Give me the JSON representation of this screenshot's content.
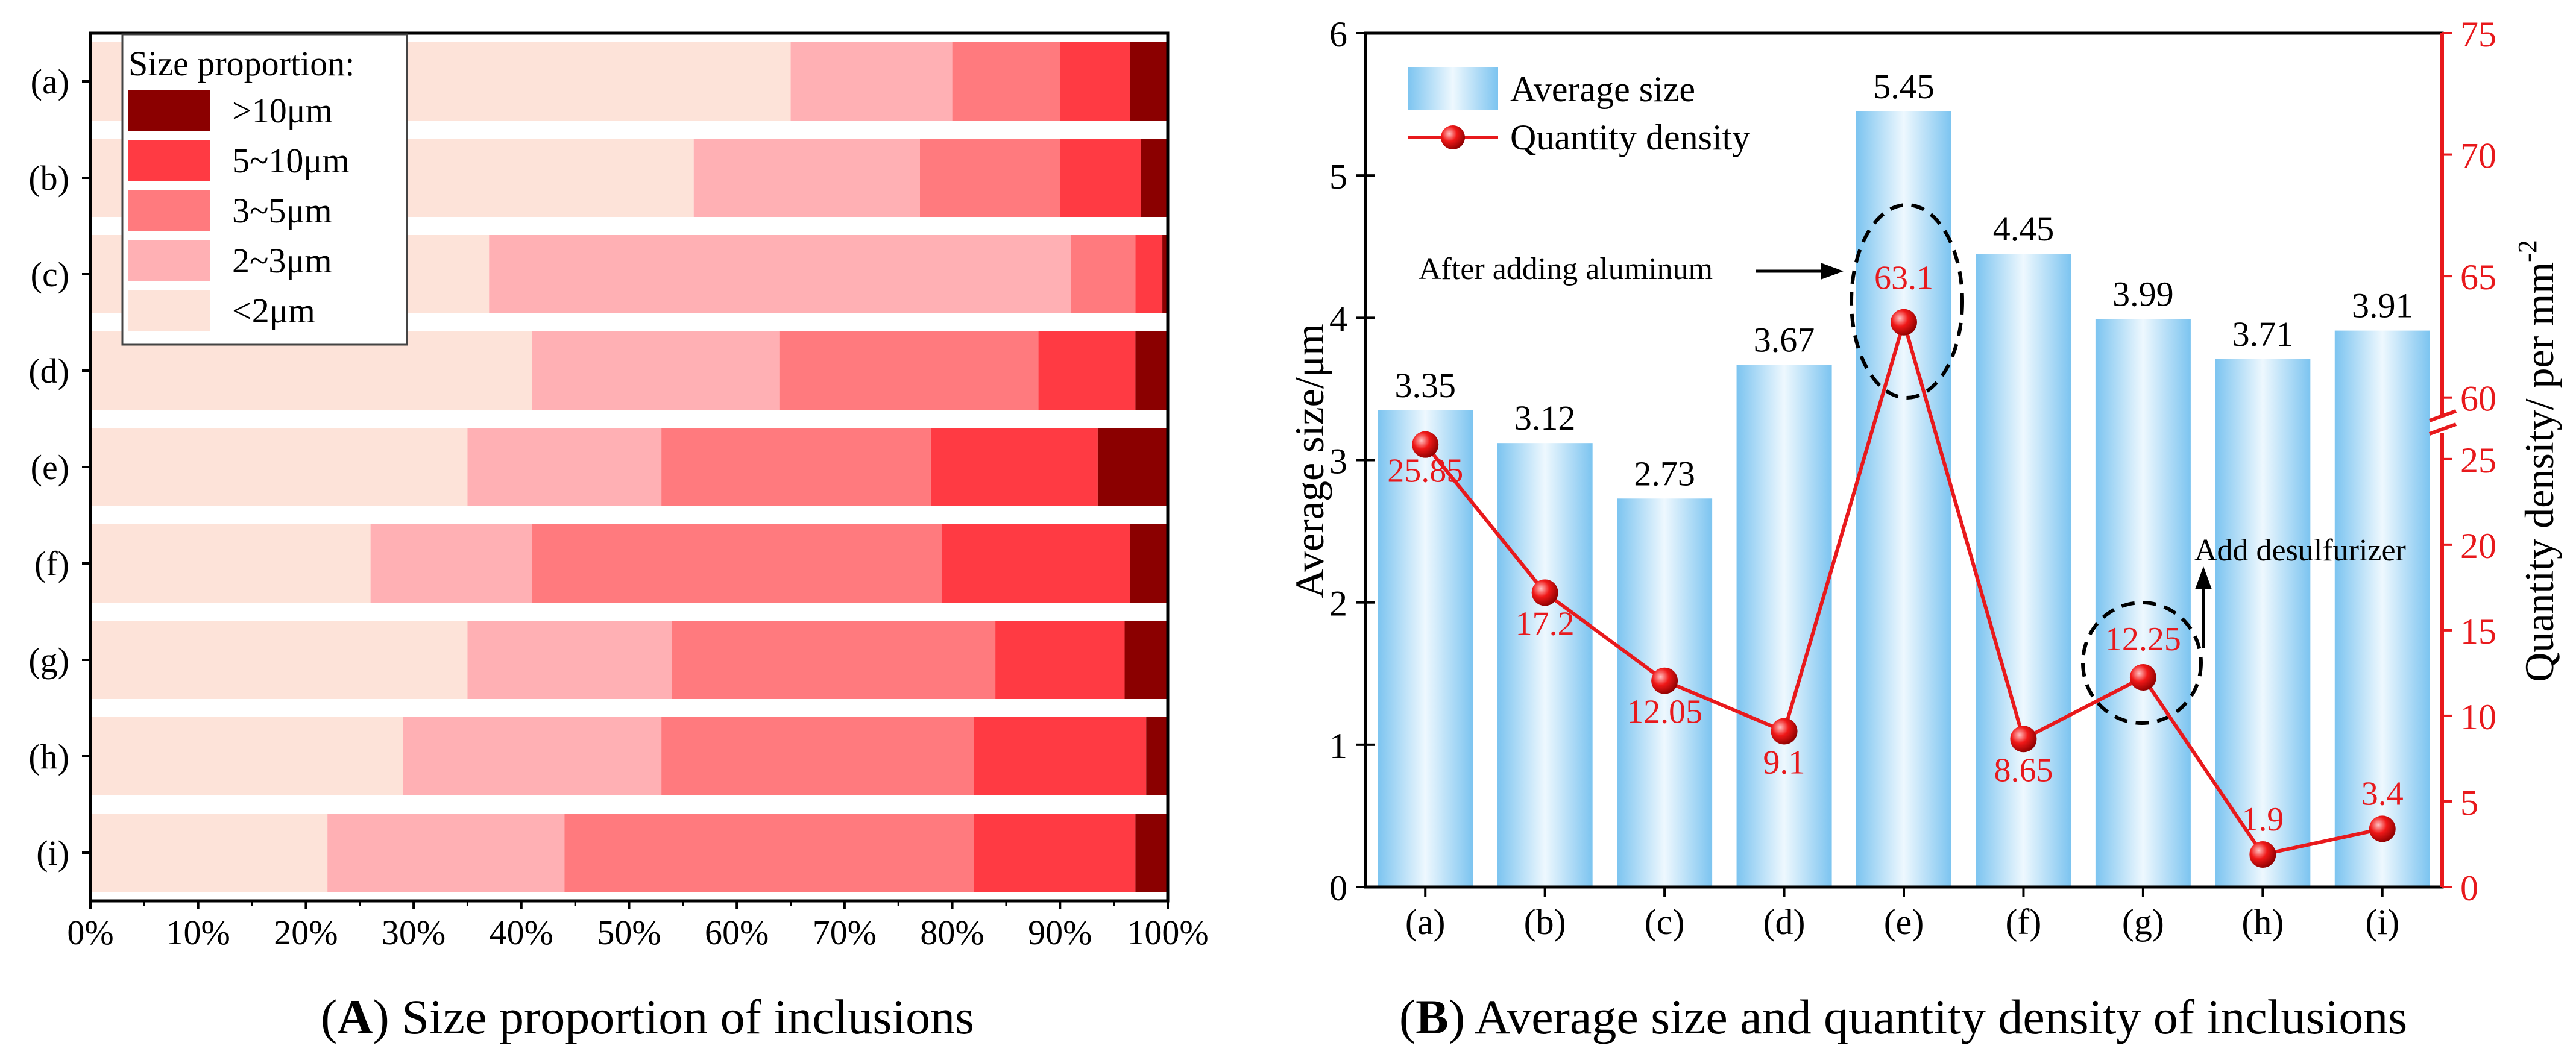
{
  "chart_data": [
    {
      "type": "bar",
      "orientation": "horizontal",
      "stacked": true,
      "categories": [
        "(a)",
        "(b)",
        "(c)",
        "(d)",
        "(e)",
        "(f)",
        "(g)",
        "(h)",
        "(i)"
      ],
      "series": [
        {
          "name": "<2μm",
          "color": "#fde3d9",
          "values": [
            65.0,
            56.0,
            37.0,
            41.0,
            35.0,
            26.0,
            35.0,
            29.0,
            22.0
          ]
        },
        {
          "name": "2~3μm",
          "color": "#ffb0b4",
          "values": [
            15.0,
            21.0,
            54.0,
            23.0,
            18.0,
            15.0,
            19.0,
            24.0,
            22.0
          ]
        },
        {
          "name": "3~5μm",
          "color": "#ff7a7e",
          "values": [
            10.0,
            13.0,
            6.0,
            24.0,
            25.0,
            38.0,
            30.0,
            29.0,
            38.0
          ]
        },
        {
          "name": "5~10μm",
          "color": "#ff3a43",
          "values": [
            6.5,
            7.5,
            2.5,
            9.0,
            15.5,
            17.5,
            12.0,
            16.0,
            15.0
          ]
        },
        {
          "name": ">10μm",
          "color": "#8b0000",
          "values": [
            3.5,
            2.5,
            0.5,
            3.0,
            6.5,
            3.5,
            4.0,
            2.0,
            3.0
          ]
        }
      ],
      "xlim": [
        0,
        100
      ],
      "xticks": [
        "0%",
        "10%",
        "20%",
        "30%",
        "40%",
        "50%",
        "60%",
        "70%",
        "80%",
        "90%",
        "100%"
      ],
      "legend_title": "Size proportion:",
      "legend_position": "top-left",
      "caption_letter": "A",
      "caption_text": ") Size proportion of inclusions"
    },
    {
      "type": "bar+line",
      "categories": [
        "(a)",
        "(b)",
        "(c)",
        "(d)",
        "(e)",
        "(f)",
        "(g)",
        "(h)",
        "(i)"
      ],
      "bar_series": {
        "name": "Average size",
        "values": [
          3.35,
          3.12,
          2.73,
          3.67,
          5.45,
          4.45,
          3.99,
          3.71,
          3.91
        ],
        "labels": [
          "3.35",
          "3.12",
          "2.73",
          "3.67",
          "5.45",
          "4.45",
          "3.99",
          "3.71",
          "3.91"
        ],
        "color": "#a9d8f5"
      },
      "line_series": {
        "name": "Quantity density",
        "values": [
          25.85,
          17.2,
          12.05,
          9.1,
          63.1,
          8.65,
          12.25,
          1.9,
          3.4
        ],
        "labels": [
          "25.85",
          "17.2",
          "12.05",
          "9.1",
          "63.1",
          "8.65",
          "12.25",
          "1.9",
          "3.4"
        ],
        "color": "#e8191c"
      },
      "ylabel_left": "Average size/μm",
      "ylim_left": [
        0,
        6
      ],
      "yticks_left": [
        "0",
        "1",
        "2",
        "3",
        "4",
        "5",
        "6"
      ],
      "ylabel_right_main": "Quantity density/ per mm",
      "ylabel_right_sup": "-2",
      "yticks_right_lower": [
        "0",
        "5",
        "10",
        "15",
        "20",
        "25"
      ],
      "yticks_right_upper": [
        "60",
        "65",
        "70",
        "75"
      ],
      "right_axis_break": {
        "lower_range": [
          0,
          27
        ],
        "upper_range": [
          59,
          75
        ]
      },
      "annotations": [
        "After adding aluminum",
        "Add desulfurizer"
      ],
      "legend_position": "top-left",
      "caption_letter": "B",
      "caption_text": ") Average size and quantity density of inclusions"
    }
  ]
}
